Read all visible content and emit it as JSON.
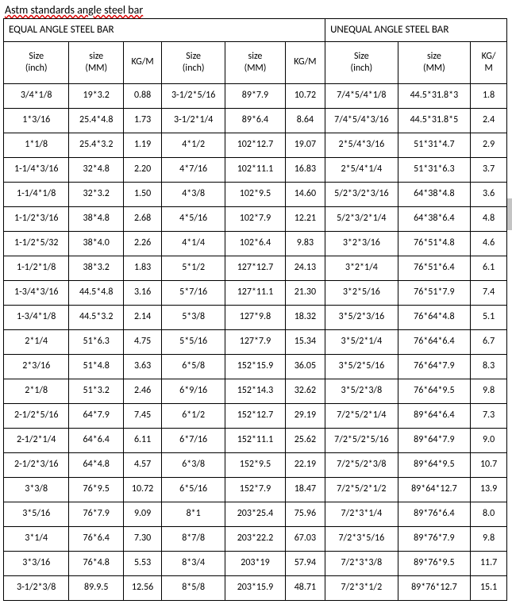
{
  "title": "Astm standards angle steel bar",
  "group_headers": [
    "EQUAL ANGLE STEEL BAR",
    "UNEQUAL ANGLE STEEL BAR"
  ],
  "col_headers": [
    "Size<br>(inch)",
    "size<br>(MM)",
    "KG/M",
    "Size<br>(inch)",
    "size<br>(MM)",
    "KG/M",
    "Size<br>(inch)",
    "size<br>(MM)",
    "KG/<br>M"
  ],
  "rows": [
    [
      "3/4*1/8",
      "19*3.2",
      "0.88",
      "3-1/2*5/16",
      "89*7.9",
      "10.72",
      "7/4*5/4*1/8",
      "44.5*31.8*3",
      "1.8"
    ],
    [
      "1*3/16",
      "25.4*4.8",
      "1.73",
      "3-1/2*1/4",
      "89*6.4",
      "8.64",
      "7/4*5/4*3/16",
      "44.5*31.8*5",
      "2.4"
    ],
    [
      "1*1/8",
      "25.4*3.2",
      "1.19",
      "4*1/2",
      "102*12.7",
      "19.07",
      "2*5/4*3/16",
      "51*31*4.7",
      "2.9"
    ],
    [
      "1-1/4*3/16",
      "32*4.8",
      "2.20",
      "4*7/16",
      "102*11.1",
      "16.83",
      "2*5/4*1/4",
      "51*31*6.3",
      "3.7"
    ],
    [
      "1-1/4*1/8",
      "32*3.2",
      "1.50",
      "4*3/8",
      "102*9.5",
      "14.60",
      "5/2*3/2*3/16",
      "64*38*4.8",
      "3.6"
    ],
    [
      "1-1/2*3/16",
      "38*4.8",
      "2.68",
      "4*5/16",
      "102*7.9",
      "12.21",
      "5/2*3/2*1/4",
      "64*38*6.4",
      "4.8"
    ],
    [
      "1-1/2*5/32",
      "38*4.0",
      "2.26",
      "4*1/4",
      "102*6.4",
      "9.83",
      "3*2*3/16",
      "76*51*4.8",
      "4.6"
    ],
    [
      "1-1/2*1/8",
      "38*3.2",
      "1.83",
      "5*1/2",
      "127*12.7",
      "24.13",
      "3*2*1/4",
      "76*51*6.4",
      "6.1"
    ],
    [
      "1-3/4*3/16",
      "44.5*4.8",
      "3.16",
      "5*7/16",
      "127*11.1",
      "21.30",
      "3*2*5/16",
      "76*51*7.9",
      "7.4"
    ],
    [
      "1-3/4*1/8",
      "44.5*3.2",
      "2.14",
      "5*3/8",
      "127*9.8",
      "18.32",
      "3*5/2*3/16",
      "76*64*4.8",
      "5.1"
    ],
    [
      "2*1/4",
      "51*6.3",
      "4.75",
      "5*5/16",
      "127*7.9",
      "15.34",
      "3*5/2*1/4",
      "76*64*6.4",
      "6.7"
    ],
    [
      "2*3/16",
      "51*4.8",
      "3.63",
      "6*5/8",
      "152*15.9",
      "36.05",
      "3*5/2*5/16",
      "76*64*7.9",
      "8.3"
    ],
    [
      "2*1/8",
      "51*3.2",
      "2.46",
      "6*9/16",
      "152*14.3",
      "32.62",
      "3*5/2*3/8",
      "76*64*9.5",
      "9.8"
    ],
    [
      "2-1/2*5/16",
      "64*7.9",
      "7.45",
      "6*1/2",
      "152*12.7",
      "29.19",
      "7/2*5/2*1/4",
      "89*64*6.4",
      "7.3"
    ],
    [
      "2-1/2*1/4",
      "64*6.4",
      "6.11",
      "6*7/16",
      "152*11.1",
      "25.62",
      "7/2*5/2*5/16",
      "89*64*7.9",
      "9.0"
    ],
    [
      "2-1/2*3/16",
      "64*4.8",
      "4.57",
      "6*3/8",
      "152*9.5",
      "22.19",
      "7/2*5/2*3/8",
      "89*64*9.5",
      "10.7"
    ],
    [
      "3*3/8",
      "76*9.5",
      "10.72",
      "6*5/16",
      "152*7.9",
      "18.47",
      "7/2*5/2*1/2",
      "89*64*12.7",
      "13.9"
    ],
    [
      "3*5/16",
      "76*7.9",
      "9.09",
      "8*1",
      "203*25.4",
      "75.96",
      "7/2*3*1/4",
      "89*76*6.4",
      "8.0"
    ],
    [
      "3*1/4",
      "76*6.4",
      "7.30",
      "8*7/8",
      "203*22.2",
      "67.03",
      "7/2*3*5/16",
      "89*76*7.9",
      "9.8"
    ],
    [
      "3*3/16",
      "76*4.8",
      "5.53",
      "8*3/4",
      "203*19",
      "57.94",
      "7/2*3*3/8",
      "89*76*9.5",
      "11.7"
    ],
    [
      "3-1/2*3/8",
      "89.9.5",
      "12.56",
      "8*5/8",
      "203*15.9",
      "48.71",
      "7/2*3*1/2",
      "89*76*12.7",
      "15.1"
    ]
  ],
  "colors": {
    "border": "#000000",
    "background": "#ffffff",
    "text": "#000000",
    "squiggle": "#d00000"
  },
  "font": {
    "family": "Calibri, Arial, sans-serif",
    "size_body": 12,
    "size_title": 14
  }
}
